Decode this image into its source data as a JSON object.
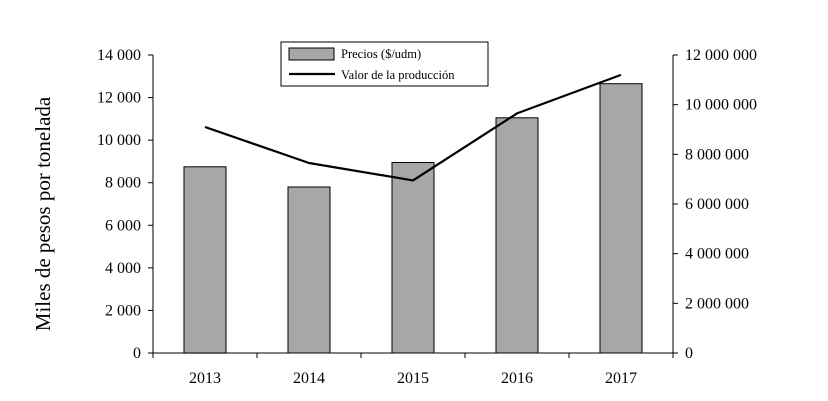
{
  "chart_data": {
    "type": "bar",
    "title": "",
    "categories": [
      "2013",
      "2014",
      "2015",
      "2016",
      "2017"
    ],
    "series": [
      {
        "name": "Precios ($/udm)",
        "kind": "bar",
        "axis": "left",
        "values": [
          8750,
          7800,
          8950,
          11050,
          12650
        ],
        "color": "#a9a6a6"
      },
      {
        "name": "Valor de la producción",
        "kind": "line",
        "axis": "right",
        "values": [
          9100000,
          7650000,
          6950000,
          9650000,
          11200000
        ],
        "color": "#000000"
      }
    ],
    "xlabel": "",
    "ylabel": "Miles de pesos por tonelada",
    "y2label": "",
    "ylim": [
      0,
      14000
    ],
    "y2lim": [
      0,
      12000000
    ],
    "yticks": [
      0,
      2000,
      4000,
      6000,
      8000,
      10000,
      12000,
      14000
    ],
    "yticks_labels": [
      "0",
      "2 000",
      "4 000",
      "6 000",
      "8 000",
      "10 000",
      "12 000",
      "14 000"
    ],
    "y2ticks": [
      0,
      2000000,
      4000000,
      6000000,
      8000000,
      10000000,
      12000000
    ],
    "y2ticks_labels": [
      "0",
      "2 000 000",
      "4 000 000",
      "6 000 000",
      "8 000 000",
      "10 000 000",
      "12 000 000"
    ],
    "grid": false,
    "legend_position": "top-center"
  }
}
